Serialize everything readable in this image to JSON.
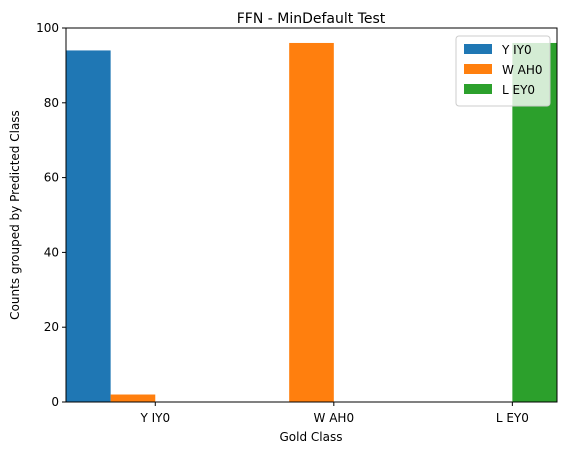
{
  "chart_data": {
    "type": "bar",
    "title": "FFN - MinDefault Test",
    "xlabel": "Gold Class",
    "ylabel": "Counts grouped by Predicted Class",
    "categories": [
      "Y IY0",
      "W AH0",
      "L EY0"
    ],
    "series": [
      {
        "name": "Y IY0",
        "color": "#1f77b4",
        "values": [
          94,
          0,
          0
        ]
      },
      {
        "name": "W AH0",
        "color": "#ff7f0e",
        "values": [
          2,
          96,
          0
        ]
      },
      {
        "name": "L EY0",
        "color": "#2ca02c",
        "values": [
          0,
          0,
          96
        ]
      }
    ],
    "ylim": [
      0,
      100
    ],
    "yticks": [
      0,
      20,
      40,
      60,
      80,
      100
    ],
    "grid": false,
    "legend_position": "top-right"
  }
}
